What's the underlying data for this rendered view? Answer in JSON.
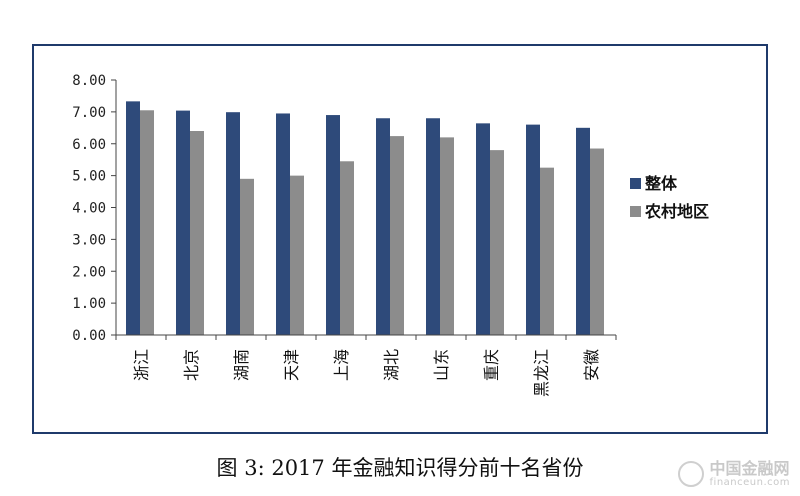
{
  "caption": "图 3: 2017 年金融知识得分前十名省份",
  "watermark": {
    "main": "中国金融网",
    "sub": "financeun.com"
  },
  "colors": {
    "series0": "#2e4a7a",
    "series1": "#8c8c8c",
    "axis": "#444444",
    "frame": "#1f3a6b"
  },
  "chart_data": {
    "type": "bar",
    "title": "",
    "xlabel": "",
    "ylabel": "",
    "ylim": [
      0,
      8
    ],
    "yticks": [
      "0.00",
      "1.00",
      "2.00",
      "3.00",
      "4.00",
      "5.00",
      "6.00",
      "7.00",
      "8.00"
    ],
    "grid": false,
    "legend_position": "right",
    "categories": [
      "浙江",
      "北京",
      "湖南",
      "天津",
      "上海",
      "湖北",
      "山东",
      "重庆",
      "黑龙江",
      "安徽"
    ],
    "series": [
      {
        "name": "整体",
        "values": [
          7.33,
          7.04,
          6.99,
          6.95,
          6.9,
          6.8,
          6.8,
          6.64,
          6.6,
          6.5
        ]
      },
      {
        "name": "农村地区",
        "values": [
          7.05,
          6.4,
          4.9,
          5.0,
          5.45,
          6.24,
          6.2,
          5.8,
          5.25,
          5.85
        ]
      }
    ]
  }
}
